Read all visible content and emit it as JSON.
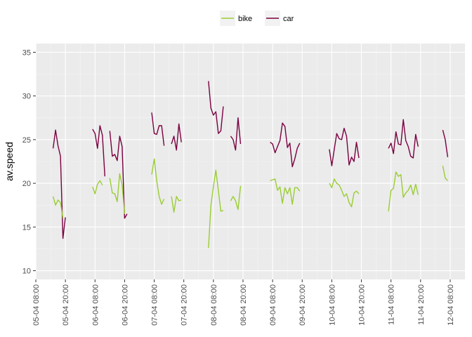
{
  "chart_data": {
    "type": "line",
    "ylabel": "av.speed",
    "xlabel": "",
    "ylim": [
      9,
      36
    ],
    "yticks": [
      10,
      15,
      20,
      25,
      30,
      35
    ],
    "x_range": [
      "05-04 08:00",
      "12-04 14:00"
    ],
    "x_ticks": [
      "05-04 08:00",
      "05-04 20:00",
      "06-04 08:00",
      "06-04 20:00",
      "07-04 08:00",
      "07-04 20:00",
      "08-04 08:00",
      "08-04 20:00",
      "09-04 08:00",
      "09-04 20:00",
      "10-04 08:00",
      "10-04 20:00",
      "11-04 08:00",
      "11-04 20:00",
      "12-04 08:00"
    ],
    "grid": true,
    "background": "#ebebeb",
    "legend_position": "top",
    "series": [
      {
        "name": "car",
        "color": "#7a0040",
        "segments": [
          [
            [
              "05-04 15:00",
              24
            ],
            [
              "05-04 16:00",
              26.1
            ],
            [
              "05-04 17:00",
              24.3
            ],
            [
              "05-04 18:00",
              23.1
            ],
            [
              "05-04 19:00",
              13.7
            ],
            [
              "05-04 20:00",
              16.1
            ]
          ],
          [
            [
              "06-04 07:00",
              26.2
            ],
            [
              "06-04 08:00",
              25.7
            ],
            [
              "06-04 09:00",
              24.0
            ],
            [
              "06-04 10:00",
              26.6
            ],
            [
              "06-04 11:00",
              25.5
            ],
            [
              "06-04 12:00",
              20.8
            ]
          ],
          [
            [
              "06-04 14:00",
              26.0
            ],
            [
              "06-04 15:00",
              23.1
            ],
            [
              "06-04 16:00",
              23.3
            ],
            [
              "06-04 17:00",
              22.6
            ],
            [
              "06-04 18:00",
              25.4
            ],
            [
              "06-04 19:00",
              24.2
            ],
            [
              "06-04 20:00",
              16.0
            ],
            [
              "06-04 21:00",
              16.5
            ]
          ],
          [
            [
              "07-04 07:00",
              28.1
            ],
            [
              "07-04 08:00",
              25.7
            ],
            [
              "07-04 09:00",
              25.6
            ],
            [
              "07-04 10:00",
              26.6
            ],
            [
              "07-04 11:00",
              26.6
            ],
            [
              "07-04 12:00",
              24.3
            ]
          ],
          [
            [
              "07-04 15:00",
              24.5
            ],
            [
              "07-04 16:00",
              25.4
            ],
            [
              "07-04 17:00",
              23.8
            ],
            [
              "07-04 18:00",
              26.8
            ],
            [
              "07-04 19:00",
              24.7
            ]
          ],
          [
            [
              "08-04 06:00",
              31.7
            ],
            [
              "08-04 07:00",
              28.6
            ],
            [
              "08-04 08:00",
              27.8
            ],
            [
              "08-04 09:00",
              28.2
            ],
            [
              "08-04 10:00",
              25.7
            ],
            [
              "08-04 11:00",
              26.0
            ],
            [
              "08-04 12:00",
              28.8
            ]
          ],
          [
            [
              "08-04 15:00",
              25.4
            ],
            [
              "08-04 16:00",
              25.0
            ],
            [
              "08-04 17:00",
              23.8
            ],
            [
              "08-04 18:00",
              27.5
            ],
            [
              "08-04 19:00",
              24.5
            ]
          ],
          [
            [
              "09-04 07:00",
              24.7
            ],
            [
              "09-04 08:00",
              24.5
            ],
            [
              "09-04 09:00",
              23.5
            ],
            [
              "09-04 10:00",
              24.2
            ],
            [
              "09-04 11:00",
              24.9
            ],
            [
              "09-04 12:00",
              26.9
            ],
            [
              "09-04 13:00",
              26.5
            ],
            [
              "09-04 14:00",
              24.1
            ],
            [
              "09-04 15:00",
              24.6
            ],
            [
              "09-04 16:00",
              21.9
            ],
            [
              "09-04 17:00",
              22.8
            ],
            [
              "09-04 18:00",
              24.0
            ],
            [
              "09-04 19:00",
              24.6
            ]
          ],
          [
            [
              "10-04 07:00",
              23.9
            ],
            [
              "10-04 08:00",
              22.0
            ],
            [
              "10-04 09:00",
              23.9
            ],
            [
              "10-04 10:00",
              25.7
            ],
            [
              "10-04 11:00",
              25.1
            ],
            [
              "10-04 12:00",
              25.0
            ],
            [
              "10-04 13:00",
              26.3
            ],
            [
              "10-04 14:00",
              25.4
            ],
            [
              "10-04 15:00",
              22.1
            ],
            [
              "10-04 16:00",
              23.0
            ],
            [
              "10-04 17:00",
              22.5
            ],
            [
              "10-04 18:00",
              24.7
            ],
            [
              "10-04 19:00",
              22.9
            ]
          ],
          [
            [
              "11-04 07:00",
              24.0
            ],
            [
              "11-04 08:00",
              24.6
            ],
            [
              "11-04 09:00",
              23.4
            ],
            [
              "11-04 10:00",
              25.9
            ],
            [
              "11-04 11:00",
              24.5
            ],
            [
              "11-04 12:00",
              24.4
            ],
            [
              "11-04 13:00",
              27.3
            ],
            [
              "11-04 14:00",
              24.9
            ],
            [
              "11-04 15:00",
              24.2
            ],
            [
              "11-04 16:00",
              23.1
            ],
            [
              "11-04 17:00",
              22.9
            ],
            [
              "11-04 18:00",
              25.6
            ],
            [
              "11-04 19:00",
              24.2
            ]
          ],
          [
            [
              "12-04 05:00",
              26.1
            ],
            [
              "12-04 06:00",
              25.0
            ],
            [
              "12-04 07:00",
              23.0
            ]
          ]
        ]
      },
      {
        "name": "bike",
        "color": "#9acd32",
        "segments": [
          [
            [
              "05-04 15:00",
              18.5
            ],
            [
              "05-04 16:00",
              17.5
            ],
            [
              "05-04 17:00",
              18.1
            ],
            [
              "05-04 18:00",
              17.8
            ],
            [
              "05-04 19:00",
              16.0
            ]
          ],
          [
            [
              "06-04 07:00",
              19.6
            ],
            [
              "06-04 08:00",
              18.8
            ],
            [
              "06-04 09:00",
              19.9
            ],
            [
              "06-04 10:00",
              20.3
            ],
            [
              "06-04 11:00",
              19.8
            ]
          ],
          [
            [
              "06-04 14:00",
              20.6
            ],
            [
              "06-04 15:00",
              18.9
            ],
            [
              "06-04 16:00",
              18.8
            ],
            [
              "06-04 17:00",
              17.9
            ],
            [
              "06-04 18:00",
              21.1
            ],
            [
              "06-04 19:00",
              19.8
            ],
            [
              "06-04 20:00",
              16.5
            ]
          ],
          [
            [
              "07-04 07:00",
              21.0
            ],
            [
              "07-04 08:00",
              22.8
            ],
            [
              "07-04 09:00",
              20.3
            ],
            [
              "07-04 10:00",
              18.5
            ],
            [
              "07-04 11:00",
              17.6
            ],
            [
              "07-04 12:00",
              18.2
            ]
          ],
          [
            [
              "07-04 15:00",
              18.5
            ],
            [
              "07-04 16:00",
              16.7
            ],
            [
              "07-04 17:00",
              18.5
            ],
            [
              "07-04 18:00",
              18.0
            ],
            [
              "07-04 19:00",
              18.1
            ]
          ],
          [
            [
              "08-04 06:00",
              12.6
            ],
            [
              "08-04 07:00",
              17.5
            ],
            [
              "08-04 08:00",
              19.6
            ],
            [
              "08-04 09:00",
              21.5
            ],
            [
              "08-04 10:00",
              19.2
            ],
            [
              "08-04 11:00",
              16.8
            ],
            [
              "08-04 12:00",
              16.9
            ]
          ],
          [
            [
              "08-04 15:00",
              18.0
            ],
            [
              "08-04 16:00",
              18.5
            ],
            [
              "08-04 17:00",
              18.0
            ],
            [
              "08-04 18:00",
              17.0
            ],
            [
              "08-04 19:00",
              19.7
            ]
          ],
          [
            [
              "09-04 07:00",
              20.3
            ],
            [
              "09-04 08:00",
              20.4
            ],
            [
              "09-04 09:00",
              20.5
            ],
            [
              "09-04 10:00",
              19.2
            ],
            [
              "09-04 11:00",
              19.6
            ],
            [
              "09-04 12:00",
              17.7
            ],
            [
              "09-04 13:00",
              19.5
            ],
            [
              "09-04 14:00",
              18.8
            ],
            [
              "09-04 15:00",
              19.5
            ],
            [
              "09-04 16:00",
              17.6
            ],
            [
              "09-04 17:00",
              19.5
            ],
            [
              "09-04 18:00",
              19.5
            ],
            [
              "09-04 19:00",
              19.1
            ]
          ],
          [
            [
              "10-04 07:00",
              20.0
            ],
            [
              "10-04 08:00",
              19.5
            ],
            [
              "10-04 09:00",
              20.5
            ],
            [
              "10-04 10:00",
              20.0
            ],
            [
              "10-04 11:00",
              19.8
            ],
            [
              "10-04 12:00",
              19.2
            ],
            [
              "10-04 13:00",
              18.5
            ],
            [
              "10-04 14:00",
              18.8
            ],
            [
              "10-04 15:00",
              17.8
            ],
            [
              "10-04 16:00",
              17.3
            ],
            [
              "10-04 17:00",
              18.9
            ],
            [
              "10-04 18:00",
              19.1
            ],
            [
              "10-04 19:00",
              18.8
            ]
          ],
          [
            [
              "11-04 07:00",
              16.8
            ],
            [
              "11-04 08:00",
              19.2
            ],
            [
              "11-04 09:00",
              19.4
            ],
            [
              "11-04 10:00",
              21.3
            ],
            [
              "11-04 11:00",
              20.8
            ],
            [
              "11-04 12:00",
              21.0
            ],
            [
              "11-04 13:00",
              18.4
            ],
            [
              "11-04 14:00",
              18.9
            ],
            [
              "11-04 15:00",
              19.2
            ],
            [
              "11-04 16:00",
              19.8
            ],
            [
              "11-04 17:00",
              18.7
            ],
            [
              "11-04 18:00",
              19.9
            ],
            [
              "11-04 19:00",
              18.7
            ]
          ],
          [
            [
              "12-04 05:00",
              22.0
            ],
            [
              "12-04 06:00",
              20.6
            ],
            [
              "12-04 07:00",
              20.3
            ]
          ]
        ]
      }
    ],
    "legend": [
      {
        "label": "bike",
        "color": "#9acd32"
      },
      {
        "label": "car",
        "color": "#7a0040"
      }
    ]
  }
}
